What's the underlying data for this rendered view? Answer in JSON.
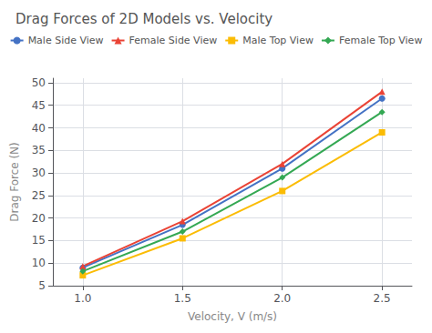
{
  "chart_data": {
    "type": "line",
    "title": "Drag Forces of 2D Models vs. Velocity",
    "xlabel": "Velocity, V (m/s)",
    "ylabel": "Drag Force (N)",
    "x": [
      1.0,
      1.5,
      2.0,
      2.5
    ],
    "series": [
      {
        "name": "Male Side View",
        "color": "#4472C4",
        "marker": "circle",
        "values": [
          9.0,
          18.5,
          31.0,
          46.5
        ]
      },
      {
        "name": "Female Side View",
        "color": "#EA4335",
        "marker": "triangle",
        "values": [
          9.3,
          19.3,
          32.0,
          48.0
        ]
      },
      {
        "name": "Male Top View",
        "color": "#FBBC04",
        "marker": "square",
        "values": [
          7.3,
          15.5,
          26.0,
          39.0
        ]
      },
      {
        "name": "Female Top View",
        "color": "#34A853",
        "marker": "diamond",
        "values": [
          8.2,
          17.0,
          29.0,
          43.5
        ]
      }
    ],
    "xlim": [
      0.85,
      2.65
    ],
    "xticks": [
      {
        "value": 1.0,
        "label": "1.0"
      },
      1.5,
      {
        "value": 2.0,
        "label": "2.0"
      },
      2.5
    ],
    "ylim": [
      5,
      51
    ],
    "yticks": [
      5,
      10,
      15,
      20,
      25,
      30,
      35,
      40,
      45,
      50
    ],
    "grid": true,
    "legend": "top"
  }
}
